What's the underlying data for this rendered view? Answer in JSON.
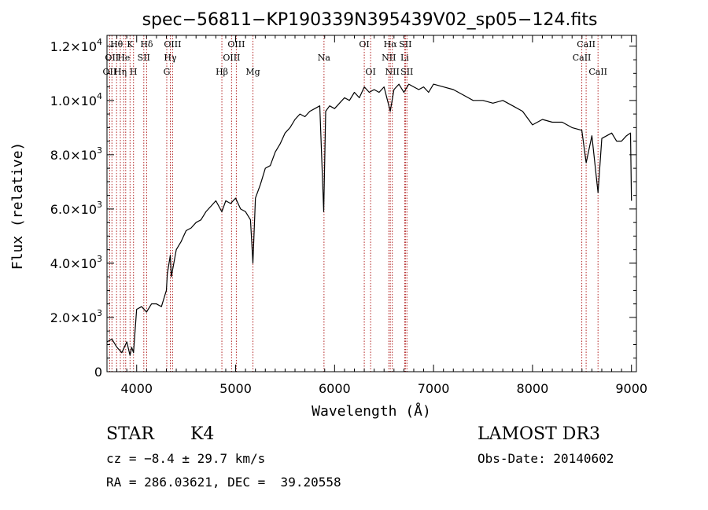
{
  "chart_data": {
    "type": "line",
    "title": "spec−56811−KP190339N395439V02_sp05−124.fits",
    "xlabel": "Wavelength (Å)",
    "ylabel": "Flux (relative)",
    "xlim": [
      3700,
      9050
    ],
    "ylim": [
      0,
      12400
    ],
    "x_ticks": [
      {
        "value": 4000,
        "label": "4000"
      },
      {
        "value": 5000,
        "label": "5000"
      },
      {
        "value": 6000,
        "label": "6000"
      },
      {
        "value": 7000,
        "label": "7000"
      },
      {
        "value": 8000,
        "label": "8000"
      },
      {
        "value": 9000,
        "label": "9000"
      }
    ],
    "y_ticks": [
      {
        "value": 0,
        "mant": "0",
        "exp": ""
      },
      {
        "value": 2000,
        "mant": "2.0×10",
        "exp": "3"
      },
      {
        "value": 4000,
        "mant": "4.0×10",
        "exp": "3"
      },
      {
        "value": 6000,
        "mant": "6.0×10",
        "exp": "3"
      },
      {
        "value": 8000,
        "mant": "8.0×10",
        "exp": "3"
      },
      {
        "value": 10000,
        "mant": "1.0×10",
        "exp": "4"
      },
      {
        "value": 12000,
        "mant": "1.2×10",
        "exp": "4"
      }
    ],
    "series": [
      {
        "x": [
          3700,
          3750,
          3800,
          3850,
          3900,
          3933,
          3950,
          3968,
          4000,
          4050,
          4100,
          4150,
          4200,
          4250,
          4300,
          4310,
          4340,
          4350,
          4400,
          4450,
          4500,
          4550,
          4600,
          4650,
          4700,
          4750,
          4800,
          4861,
          4900,
          4950,
          5000,
          5050,
          5100,
          5150,
          5175,
          5200,
          5250,
          5300,
          5350,
          5400,
          5450,
          5500,
          5550,
          5600,
          5650,
          5700,
          5750,
          5800,
          5850,
          5890,
          5910,
          5950,
          6000,
          6050,
          6100,
          6150,
          6200,
          6250,
          6300,
          6350,
          6400,
          6450,
          6500,
          6563,
          6600,
          6650,
          6700,
          6750,
          6800,
          6850,
          6900,
          6950,
          7000,
          7100,
          7200,
          7300,
          7400,
          7500,
          7600,
          7700,
          7800,
          7900,
          8000,
          8100,
          8200,
          8300,
          8400,
          8498,
          8542,
          8600,
          8662,
          8700,
          8750,
          8800,
          8850,
          8900,
          8950,
          8990,
          9000
        ],
        "y": [
          1100,
          1200,
          900,
          700,
          1100,
          600,
          900,
          700,
          2300,
          2400,
          2200,
          2500,
          2500,
          2400,
          3000,
          3600,
          4300,
          3500,
          4500,
          4800,
          5200,
          5300,
          5500,
          5600,
          5900,
          6100,
          6300,
          5900,
          6300,
          6200,
          6400,
          6000,
          5900,
          5600,
          4000,
          6400,
          6900,
          7500,
          7600,
          8100,
          8400,
          8800,
          9000,
          9300,
          9500,
          9400,
          9600,
          9700,
          9800,
          5900,
          9600,
          9800,
          9700,
          9900,
          10100,
          10000,
          10300,
          10100,
          10500,
          10300,
          10400,
          10300,
          10500,
          9600,
          10400,
          10600,
          10300,
          10600,
          10500,
          10400,
          10500,
          10300,
          10600,
          10500,
          10400,
          10200,
          10000,
          10000,
          9900,
          10000,
          9800,
          9600,
          9100,
          9300,
          9200,
          9200,
          9000,
          8900,
          7700,
          8700,
          6600,
          8600,
          8700,
          8800,
          8500,
          8500,
          8700,
          8800,
          6300
        ]
      }
    ],
    "spectral_lines": [
      {
        "x": 3727,
        "label": "OII",
        "row": 2
      },
      {
        "x": 3750,
        "label": "OII",
        "row": 1
      },
      {
        "x": 3797,
        "label": "Hθ",
        "row": 0
      },
      {
        "x": 3835,
        "label": "Hη",
        "row": 2
      },
      {
        "x": 3869,
        "label": "He",
        "row": 1
      },
      {
        "x": 3889,
        "label": "",
        "row": 0
      },
      {
        "x": 3933,
        "label": "K",
        "row": 0
      },
      {
        "x": 3968,
        "label": "H",
        "row": 2
      },
      {
        "x": 4072,
        "label": "SII",
        "row": 1
      },
      {
        "x": 4101,
        "label": "Hδ",
        "row": 0
      },
      {
        "x": 4304,
        "label": "G",
        "row": 2
      },
      {
        "x": 4340,
        "label": "Hγ",
        "row": 1
      },
      {
        "x": 4363,
        "label": "OIII",
        "row": 0
      },
      {
        "x": 4861,
        "label": "Hβ",
        "row": 2
      },
      {
        "x": 4959,
        "label": "OIII",
        "row": 1
      },
      {
        "x": 5007,
        "label": "OIII",
        "row": 0
      },
      {
        "x": 5175,
        "label": "Mg",
        "row": 2
      },
      {
        "x": 5893,
        "label": "Na",
        "row": 1
      },
      {
        "x": 6300,
        "label": "OI",
        "row": 0
      },
      {
        "x": 6364,
        "label": "OI",
        "row": 2
      },
      {
        "x": 6548,
        "label": "NII",
        "row": 1
      },
      {
        "x": 6563,
        "label": "Hα",
        "row": 0
      },
      {
        "x": 6583,
        "label": "NII",
        "row": 2
      },
      {
        "x": 6708,
        "label": "Li",
        "row": 1
      },
      {
        "x": 6716,
        "label": "SII",
        "row": 0
      },
      {
        "x": 6731,
        "label": "SII",
        "row": 2
      },
      {
        "x": 8498,
        "label": "CaII",
        "row": 1
      },
      {
        "x": 8542,
        "label": "CaII",
        "row": 0
      },
      {
        "x": 8662,
        "label": "CaII",
        "row": 2
      }
    ],
    "grid": false,
    "colors": {
      "spectrum": "#000000",
      "lines": "#b22222"
    }
  },
  "info": {
    "object_type": "STAR",
    "subclass": "K4",
    "survey": "LAMOST DR3",
    "redshift": "cz = −8.4 ± 29.7 km/s",
    "obs_date": "Obs-Date: 20140602",
    "coords": "RA = 286.03621, DEC =  39.20558"
  }
}
